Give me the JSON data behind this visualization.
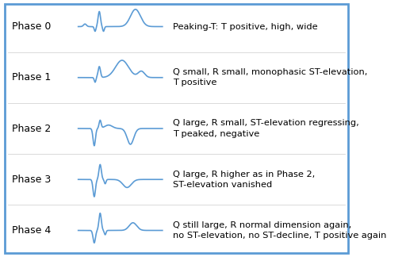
{
  "background_color": "#ffffff",
  "border_color": "#5b9bd5",
  "ecg_color": "#5b9bd5",
  "text_color": "#000000",
  "phases": [
    {
      "label": "Phase 0",
      "description": "Peaking-T: T positive, high, wide"
    },
    {
      "label": "Phase 1",
      "description": "Q small, R small, monophasic ST-elevation,\nT positive"
    },
    {
      "label": "Phase 2",
      "description": "Q large, R small, ST-elevation regressing,\nT peaked, negative"
    },
    {
      "label": "Phase 3",
      "description": "Q large, R higher as in Phase 2,\nST-elevation vanished"
    },
    {
      "label": "Phase 4",
      "description": "Q still large, R normal dimension again,\nno ST-elevation, no ST-decline, T positive again"
    }
  ]
}
